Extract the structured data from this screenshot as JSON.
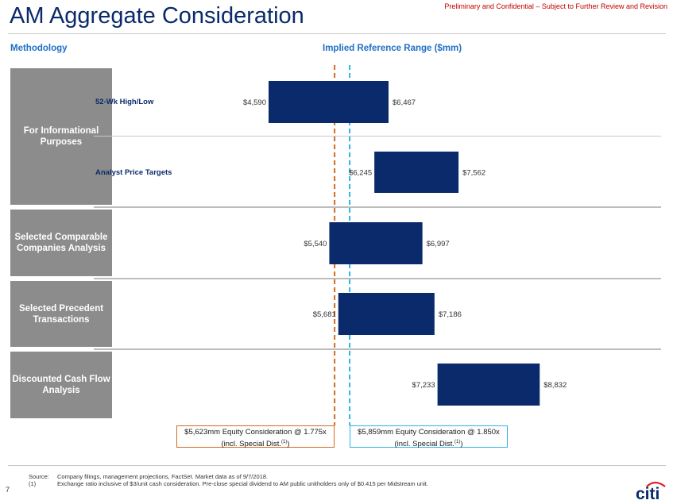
{
  "header": {
    "title": "AM Aggregate Consideration",
    "confidential": "Preliminary and Confidential – Subject to Further Review and Revision"
  },
  "columns": {
    "methodology": "Methodology",
    "range": "Implied Reference Range ($mm)"
  },
  "categories": [
    {
      "label": "For Informational Purposes"
    },
    {
      "label": "Selected Comparable Companies Analysis"
    },
    {
      "label": "Selected Precedent Transactions"
    },
    {
      "label": "Discounted Cash Flow Analysis"
    }
  ],
  "chart_data": {
    "type": "bar",
    "orientation": "horizontal-floating",
    "bars": [
      {
        "group": "For Informational Purposes",
        "label": "52-Wk High/Low",
        "low": 4590,
        "high": 6467,
        "low_label": "$4,590",
        "high_label": "$6,467"
      },
      {
        "group": "For Informational Purposes",
        "label": "Analyst Price Targets",
        "low": 6245,
        "high": 7562,
        "low_label": "$6,245",
        "high_label": "$7,562"
      },
      {
        "group": "Selected Comparable Companies Analysis",
        "label": "",
        "low": 5540,
        "high": 6997,
        "low_label": "$5,540",
        "high_label": "$6,997"
      },
      {
        "group": "Selected Precedent Transactions",
        "label": "",
        "low": 5681,
        "high": 7186,
        "low_label": "$5,681",
        "high_label": "$7,186"
      },
      {
        "group": "Discounted Cash Flow Analysis",
        "label": "",
        "low": 7233,
        "high": 8832,
        "low_label": "$7,233",
        "high_label": "$8,832"
      }
    ],
    "reference_lines": [
      {
        "value": 5623,
        "color": "#d46a1e",
        "style": "dashed"
      },
      {
        "value": 5859,
        "color": "#2fb3e6",
        "style": "dashed"
      }
    ],
    "bar_color": "#0a2a6b",
    "grid": false
  },
  "considerations": [
    {
      "line1": "$5,623mm Equity Consideration @ 1.775x",
      "line2": "(incl. Special Dist.",
      "note": "(1)",
      "close": ")"
    },
    {
      "line1": "$5,859mm Equity Consideration @ 1.850x",
      "line2": "(incl. Special Dist.",
      "note": "(1)",
      "close": ")"
    }
  ],
  "footnotes": {
    "source_label": "Source:",
    "source_text": "Company filings, management projections, FactSet. Market data as of 9/7/2018.",
    "note1_label": "(1)",
    "note1_text": "Exchange ratio inclusive of $3/unit cash consideration. Pre-close special dividend to AM public unitholders only of $0.415 per Midstream unit."
  },
  "page_number": "7",
  "logo": {
    "text": "citi",
    "arc_color": "#e31b23",
    "text_color": "#0a2a6b"
  }
}
